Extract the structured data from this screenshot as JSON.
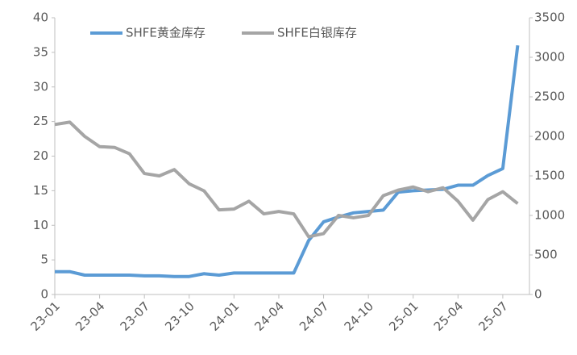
{
  "chart_data": {
    "type": "line",
    "x": [
      "23-01",
      null,
      null,
      "23-04",
      null,
      null,
      "23-07",
      null,
      null,
      "23-10",
      null,
      null,
      "24-01",
      null,
      null,
      "24-04",
      null,
      null,
      "24-07",
      null,
      null,
      "24-10",
      null,
      null,
      "25-01",
      null,
      null,
      "25-04",
      null,
      null,
      "25-07",
      null
    ],
    "series": [
      {
        "name": "SHFE黄金库存",
        "color": "#5b9bd5",
        "values": [
          3.3,
          3.3,
          2.8,
          2.8,
          2.8,
          2.8,
          2.7,
          2.7,
          2.6,
          2.6,
          3.0,
          2.8,
          3.1,
          3.1,
          3.1,
          3.1,
          3.1,
          7.8,
          10.5,
          11.2,
          11.8,
          12.0,
          12.2,
          14.8,
          15.0,
          15.1,
          15.2,
          15.8,
          15.8,
          17.2,
          18.2,
          36
        ]
      },
      {
        "name": "SHFE白银库存",
        "color": "#a5a5a5",
        "axis": "y2",
        "values": [
          2150,
          2180,
          2000,
          1870,
          1860,
          1780,
          1530,
          1500,
          1580,
          1400,
          1310,
          1070,
          1080,
          1180,
          1020,
          1050,
          1020,
          730,
          770,
          1000,
          970,
          1000,
          1250,
          1320,
          1360,
          1300,
          1350,
          1180,
          940,
          1200,
          1300,
          1150
        ]
      }
    ],
    "ylim": [
      0,
      40
    ],
    "yticks": [
      0,
      5,
      10,
      15,
      20,
      25,
      30,
      35,
      40
    ],
    "y2lim": [
      0,
      3500
    ],
    "y2ticks": [
      0,
      500,
      1000,
      1500,
      2000,
      2500,
      3000,
      3500
    ],
    "legend": "top"
  }
}
